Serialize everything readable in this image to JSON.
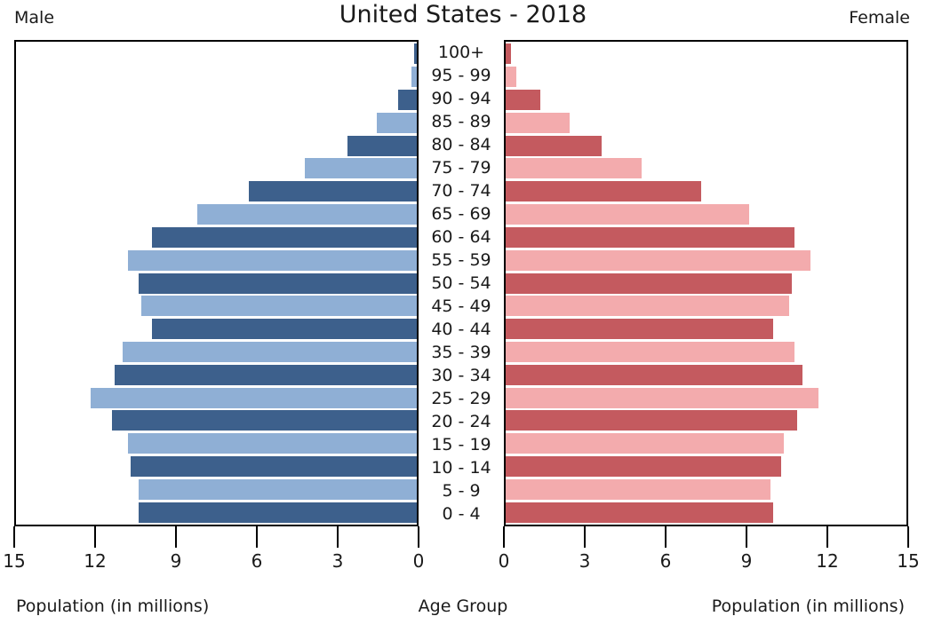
{
  "header": {
    "title": "United States - 2018"
  },
  "chart_data": {
    "type": "bar",
    "subtype": "population-pyramid",
    "title": "United States - 2018",
    "categories": [
      "100+",
      "95 - 99",
      "90 - 94",
      "85 - 89",
      "80 - 84",
      "75 - 79",
      "70 - 74",
      "65 - 69",
      "60 - 64",
      "55 - 59",
      "50 - 54",
      "45 - 49",
      "40 - 44",
      "35 - 39",
      "30 - 34",
      "25 - 29",
      "20 - 24",
      "15 - 19",
      "10 - 14",
      "5 - 9",
      "0 - 4"
    ],
    "series": [
      {
        "name": "Male",
        "side": "left",
        "color_dark": "#3d608c",
        "color_light": "#8fafd5",
        "values": [
          0.1,
          0.2,
          0.7,
          1.5,
          2.6,
          4.2,
          6.3,
          8.2,
          9.9,
          10.8,
          10.4,
          10.3,
          9.9,
          11.0,
          11.3,
          12.2,
          11.4,
          10.8,
          10.7,
          10.4,
          10.4
        ]
      },
      {
        "name": "Female",
        "side": "right",
        "color_dark": "#c45a5f",
        "color_light": "#f3abad",
        "values": [
          0.2,
          0.4,
          1.3,
          2.4,
          3.6,
          5.1,
          7.3,
          9.1,
          10.8,
          11.4,
          10.7,
          10.6,
          10.0,
          10.8,
          11.1,
          11.7,
          10.9,
          10.4,
          10.3,
          9.9,
          10.0
        ]
      }
    ],
    "xlim": [
      0,
      15
    ],
    "x_ticks_left": [
      "15",
      "12",
      "9",
      "6",
      "3",
      "0"
    ],
    "x_ticks_right": [
      "0",
      "3",
      "6",
      "9",
      "12",
      "15"
    ],
    "xlabel_left": "Population (in millions)",
    "xlabel_center": "Age Group",
    "xlabel_right": "Population (in millions)",
    "units": "millions",
    "grid": false,
    "legend_position": "none",
    "bar_row_pattern": "alternating dark/light, even rows dark"
  },
  "colors": {
    "background": "#ffffff",
    "text": "#1a1a1a",
    "axis": "#000000",
    "male_dark": "#3d608c",
    "male_light": "#8fafd5",
    "female_dark": "#c45a5f",
    "female_light": "#f3abad"
  }
}
